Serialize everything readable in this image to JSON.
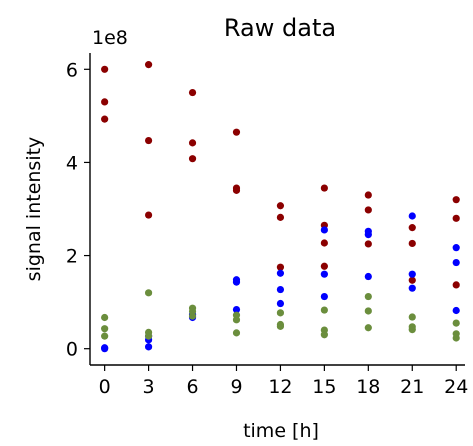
{
  "chart_data": {
    "type": "scatter",
    "title": "Raw data",
    "xlabel": "time [h]",
    "ylabel": "signal intensity",
    "y_offset_label": "1e8",
    "x_ticks": [
      0,
      3,
      6,
      9,
      12,
      15,
      18,
      21,
      24
    ],
    "y_ticks": [
      0,
      2,
      4,
      6
    ],
    "xlim": [
      -1,
      24.6
    ],
    "ylim": [
      -0.35,
      6.35
    ],
    "grid": false,
    "series": [
      {
        "color": "#8b0000",
        "points": [
          [
            0,
            6.0
          ],
          [
            0,
            5.3
          ],
          [
            0,
            4.93
          ],
          [
            3,
            6.1
          ],
          [
            3,
            4.47
          ],
          [
            3,
            2.87
          ],
          [
            6,
            5.5
          ],
          [
            6,
            4.42
          ],
          [
            6,
            4.08
          ],
          [
            9,
            4.65
          ],
          [
            9,
            3.45
          ],
          [
            9,
            3.4
          ],
          [
            12,
            3.07
          ],
          [
            12,
            2.82
          ],
          [
            12,
            1.75
          ],
          [
            15,
            3.45
          ],
          [
            15,
            2.65
          ],
          [
            15,
            2.27
          ],
          [
            15,
            1.77
          ],
          [
            18,
            3.3
          ],
          [
            18,
            2.98
          ],
          [
            18,
            2.25
          ],
          [
            21,
            2.6
          ],
          [
            21,
            2.26
          ],
          [
            21,
            1.47
          ],
          [
            24,
            3.2
          ],
          [
            24,
            2.8
          ],
          [
            24,
            1.37
          ]
        ]
      },
      {
        "color": "#0000ff",
        "points": [
          [
            0,
            0.02
          ],
          [
            0,
            0.0
          ],
          [
            3,
            0.27
          ],
          [
            3,
            0.19
          ],
          [
            3,
            0.04
          ],
          [
            6,
            0.73
          ],
          [
            6,
            0.67
          ],
          [
            9,
            1.48
          ],
          [
            9,
            1.43
          ],
          [
            9,
            0.84
          ],
          [
            12,
            1.62
          ],
          [
            12,
            1.27
          ],
          [
            12,
            0.97
          ],
          [
            15,
            2.55
          ],
          [
            15,
            1.6
          ],
          [
            15,
            1.12
          ],
          [
            18,
            2.52
          ],
          [
            18,
            2.45
          ],
          [
            18,
            1.55
          ],
          [
            21,
            2.85
          ],
          [
            21,
            1.6
          ],
          [
            21,
            1.3
          ],
          [
            24,
            2.17
          ],
          [
            24,
            1.85
          ],
          [
            24,
            0.82
          ]
        ]
      },
      {
        "color": "#6b8e3d",
        "points": [
          [
            0,
            0.67
          ],
          [
            0,
            0.43
          ],
          [
            0,
            0.27
          ],
          [
            3,
            1.2
          ],
          [
            3,
            0.35
          ],
          [
            3,
            0.27
          ],
          [
            6,
            0.87
          ],
          [
            6,
            0.8
          ],
          [
            6,
            0.7
          ],
          [
            9,
            0.72
          ],
          [
            9,
            0.62
          ],
          [
            9,
            0.34
          ],
          [
            12,
            0.77
          ],
          [
            12,
            0.52
          ],
          [
            12,
            0.48
          ],
          [
            15,
            0.83
          ],
          [
            15,
            0.4
          ],
          [
            15,
            0.3
          ],
          [
            18,
            1.12
          ],
          [
            18,
            0.81
          ],
          [
            18,
            0.45
          ],
          [
            21,
            0.68
          ],
          [
            21,
            0.47
          ],
          [
            21,
            0.41
          ],
          [
            24,
            0.55
          ],
          [
            24,
            0.32
          ],
          [
            24,
            0.23
          ]
        ]
      }
    ]
  }
}
